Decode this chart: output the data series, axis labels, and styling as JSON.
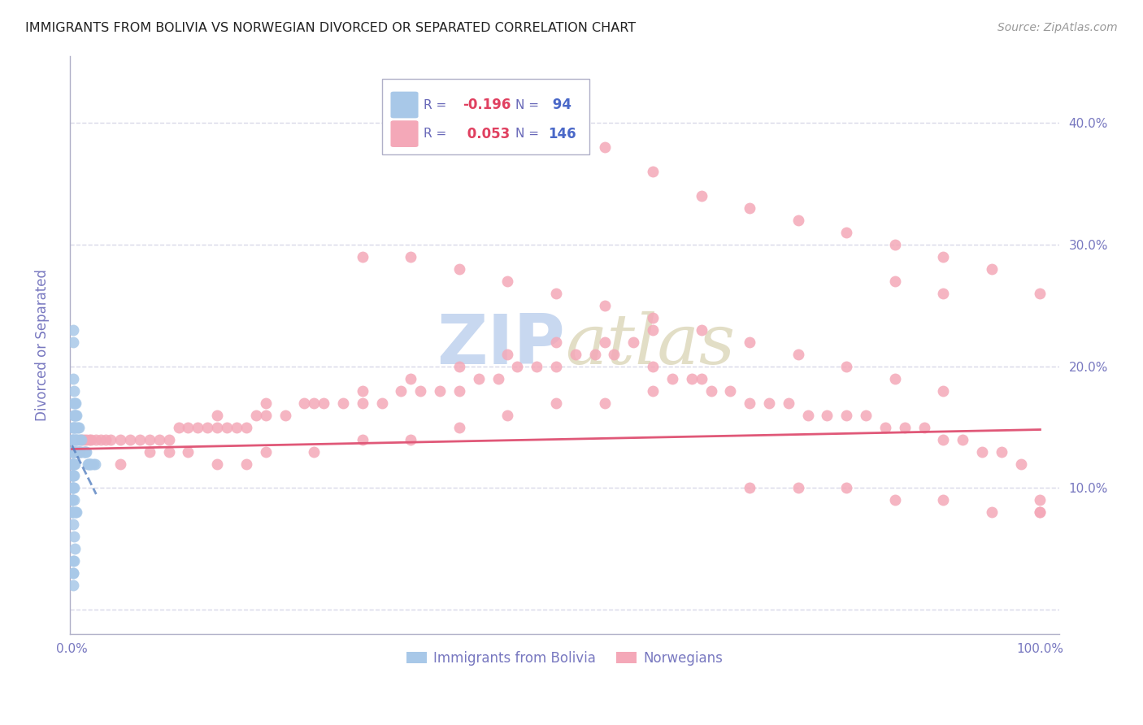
{
  "title": "IMMIGRANTS FROM BOLIVIA VS NORWEGIAN DIVORCED OR SEPARATED CORRELATION CHART",
  "source_text": "Source: ZipAtlas.com",
  "ylabel": "Divorced or Separated",
  "xlim": [
    -0.002,
    1.02
  ],
  "ylim": [
    -0.02,
    0.455
  ],
  "yticks": [
    0.0,
    0.1,
    0.2,
    0.3,
    0.4
  ],
  "xticks": [
    0.0,
    0.2,
    0.4,
    0.6,
    0.8,
    1.0
  ],
  "ytick_labels_right": [
    "",
    "10.0%",
    "20.0%",
    "30.0%",
    "40.0%"
  ],
  "xtick_labels": [
    "0.0%",
    "",
    "",
    "",
    "",
    "100.0%"
  ],
  "color_bolivia": "#a8c8e8",
  "color_norway": "#f4a8b8",
  "color_line_bolivia": "#5580c0",
  "color_line_norway": "#e05878",
  "color_axis": "#b0b0c8",
  "color_tick_labels": "#7878c0",
  "color_grid": "#d8d8e8",
  "watermark_color": "#c8d8f0",
  "bolivia_x": [
    0.0,
    0.0,
    0.0,
    0.0,
    0.0,
    0.0,
    0.0,
    0.0,
    0.0,
    0.0,
    0.0,
    0.0,
    0.0,
    0.0,
    0.0,
    0.0,
    0.0,
    0.0,
    0.0,
    0.0,
    0.001,
    0.001,
    0.001,
    0.001,
    0.001,
    0.001,
    0.001,
    0.001,
    0.001,
    0.001,
    0.002,
    0.002,
    0.002,
    0.002,
    0.002,
    0.002,
    0.002,
    0.002,
    0.003,
    0.003,
    0.003,
    0.003,
    0.003,
    0.004,
    0.004,
    0.004,
    0.004,
    0.005,
    0.005,
    0.005,
    0.006,
    0.006,
    0.007,
    0.007,
    0.008,
    0.009,
    0.01,
    0.01,
    0.012,
    0.013,
    0.014,
    0.015,
    0.016,
    0.017,
    0.018,
    0.019,
    0.02,
    0.022,
    0.024,
    0.001,
    0.002,
    0.003,
    0.001,
    0.002,
    0.001,
    0.001,
    0.001,
    0.001,
    0.001,
    0.002,
    0.003,
    0.004,
    0.005,
    0.001,
    0.002,
    0.001,
    0.002,
    0.003,
    0.004,
    0.005,
    0.006,
    0.007
  ],
  "bolivia_y": [
    0.14,
    0.13,
    0.13,
    0.12,
    0.12,
    0.12,
    0.11,
    0.11,
    0.11,
    0.1,
    0.1,
    0.09,
    0.09,
    0.09,
    0.08,
    0.08,
    0.08,
    0.13,
    0.14,
    0.15,
    0.15,
    0.14,
    0.13,
    0.13,
    0.12,
    0.12,
    0.11,
    0.11,
    0.1,
    0.1,
    0.16,
    0.15,
    0.14,
    0.13,
    0.13,
    0.12,
    0.11,
    0.1,
    0.17,
    0.16,
    0.15,
    0.13,
    0.12,
    0.17,
    0.16,
    0.14,
    0.13,
    0.16,
    0.15,
    0.14,
    0.15,
    0.14,
    0.15,
    0.13,
    0.14,
    0.13,
    0.14,
    0.13,
    0.13,
    0.13,
    0.13,
    0.13,
    0.12,
    0.12,
    0.12,
    0.12,
    0.12,
    0.12,
    0.12,
    0.07,
    0.06,
    0.05,
    0.04,
    0.04,
    0.03,
    0.03,
    0.02,
    0.23,
    0.22,
    0.09,
    0.08,
    0.08,
    0.08,
    0.19,
    0.18,
    0.17,
    0.16,
    0.15,
    0.14,
    0.13,
    0.13,
    0.13
  ],
  "norway_x": [
    0.005,
    0.008,
    0.01,
    0.012,
    0.015,
    0.018,
    0.02,
    0.025,
    0.03,
    0.035,
    0.04,
    0.05,
    0.06,
    0.07,
    0.08,
    0.09,
    0.1,
    0.11,
    0.12,
    0.13,
    0.14,
    0.15,
    0.16,
    0.17,
    0.18,
    0.19,
    0.2,
    0.22,
    0.24,
    0.26,
    0.28,
    0.3,
    0.32,
    0.34,
    0.36,
    0.38,
    0.4,
    0.42,
    0.44,
    0.46,
    0.48,
    0.5,
    0.52,
    0.54,
    0.56,
    0.58,
    0.6,
    0.62,
    0.64,
    0.66,
    0.68,
    0.7,
    0.72,
    0.74,
    0.76,
    0.78,
    0.8,
    0.82,
    0.84,
    0.86,
    0.88,
    0.9,
    0.92,
    0.94,
    0.96,
    0.98,
    1.0,
    0.15,
    0.2,
    0.25,
    0.3,
    0.35,
    0.4,
    0.45,
    0.5,
    0.55,
    0.6,
    0.2,
    0.25,
    0.3,
    0.35,
    0.4,
    0.45,
    0.5,
    0.55,
    0.6,
    0.65,
    0.3,
    0.35,
    0.4,
    0.45,
    0.5,
    0.55,
    0.6,
    0.65,
    0.7,
    0.75,
    0.8,
    0.85,
    0.9,
    0.55,
    0.6,
    0.65,
    0.7,
    0.75,
    0.8,
    0.85,
    0.9,
    0.95,
    1.0,
    0.7,
    0.75,
    0.8,
    0.85,
    0.9,
    0.95,
    1.0,
    0.05,
    0.08,
    0.1,
    0.12,
    0.15,
    0.18,
    0.85,
    0.9,
    1.0
  ],
  "norway_y": [
    0.13,
    0.13,
    0.14,
    0.14,
    0.14,
    0.14,
    0.14,
    0.14,
    0.14,
    0.14,
    0.14,
    0.14,
    0.14,
    0.14,
    0.14,
    0.14,
    0.14,
    0.15,
    0.15,
    0.15,
    0.15,
    0.15,
    0.15,
    0.15,
    0.15,
    0.16,
    0.16,
    0.16,
    0.17,
    0.17,
    0.17,
    0.17,
    0.17,
    0.18,
    0.18,
    0.18,
    0.18,
    0.19,
    0.19,
    0.2,
    0.2,
    0.2,
    0.21,
    0.21,
    0.21,
    0.22,
    0.2,
    0.19,
    0.19,
    0.18,
    0.18,
    0.17,
    0.17,
    0.17,
    0.16,
    0.16,
    0.16,
    0.16,
    0.15,
    0.15,
    0.15,
    0.14,
    0.14,
    0.13,
    0.13,
    0.12,
    0.08,
    0.16,
    0.17,
    0.17,
    0.18,
    0.19,
    0.2,
    0.21,
    0.22,
    0.22,
    0.23,
    0.13,
    0.13,
    0.14,
    0.14,
    0.15,
    0.16,
    0.17,
    0.17,
    0.18,
    0.19,
    0.29,
    0.29,
    0.28,
    0.27,
    0.26,
    0.25,
    0.24,
    0.23,
    0.22,
    0.21,
    0.2,
    0.19,
    0.18,
    0.38,
    0.36,
    0.34,
    0.33,
    0.32,
    0.31,
    0.3,
    0.29,
    0.28,
    0.26,
    0.1,
    0.1,
    0.1,
    0.09,
    0.09,
    0.08,
    0.08,
    0.12,
    0.13,
    0.13,
    0.13,
    0.12,
    0.12,
    0.27,
    0.26,
    0.09
  ],
  "line_bolivia_x0": 0.0,
  "line_bolivia_y0": 0.135,
  "line_bolivia_x1": 0.025,
  "line_bolivia_y1": 0.095,
  "line_norway_x0": 0.0,
  "line_norway_y0": 0.132,
  "line_norway_x1": 1.0,
  "line_norway_y1": 0.148
}
